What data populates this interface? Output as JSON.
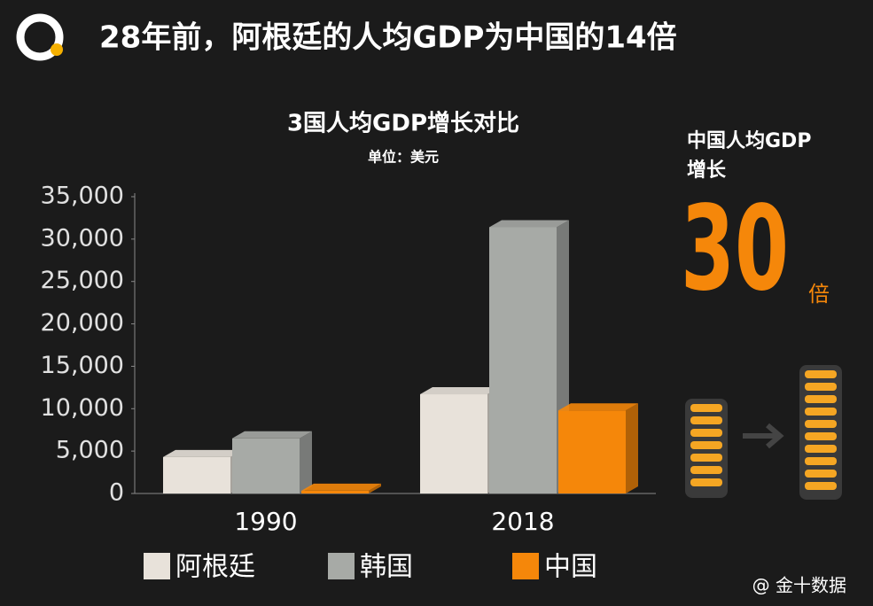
{
  "chart_data": {
    "type": "bar",
    "header_title": "28年前，阿根廷的人均GDP为中国的14倍",
    "title": "3国人均GDP增长对比",
    "subtitle": "单位：美元",
    "categories": [
      "1990",
      "2018"
    ],
    "series": [
      {
        "name": "阿根廷",
        "color": "#e8e2da",
        "values": [
          4300,
          11700
        ]
      },
      {
        "name": "韩国",
        "color": "#a7aaa6",
        "values": [
          6500,
          31400
        ]
      },
      {
        "name": "中国",
        "color": "#f5870a",
        "values": [
          320,
          9800
        ]
      }
    ],
    "ylim": [
      0,
      35000
    ],
    "yticks": [
      0,
      {
        "value": 5000,
        "label": "5,000"
      },
      {
        "value": 10000,
        "label": "10,000"
      },
      {
        "value": 15000,
        "label": "15,000"
      },
      {
        "value": 20000,
        "label": "20,000"
      },
      {
        "value": 25000,
        "label": "25,000"
      },
      {
        "value": 30000,
        "label": "30,000"
      },
      {
        "value": 35000,
        "label": "35,000"
      }
    ],
    "annotations": [
      "中国人均GDP",
      "增长",
      30,
      "倍"
    ],
    "source": "@ 金十数据"
  }
}
